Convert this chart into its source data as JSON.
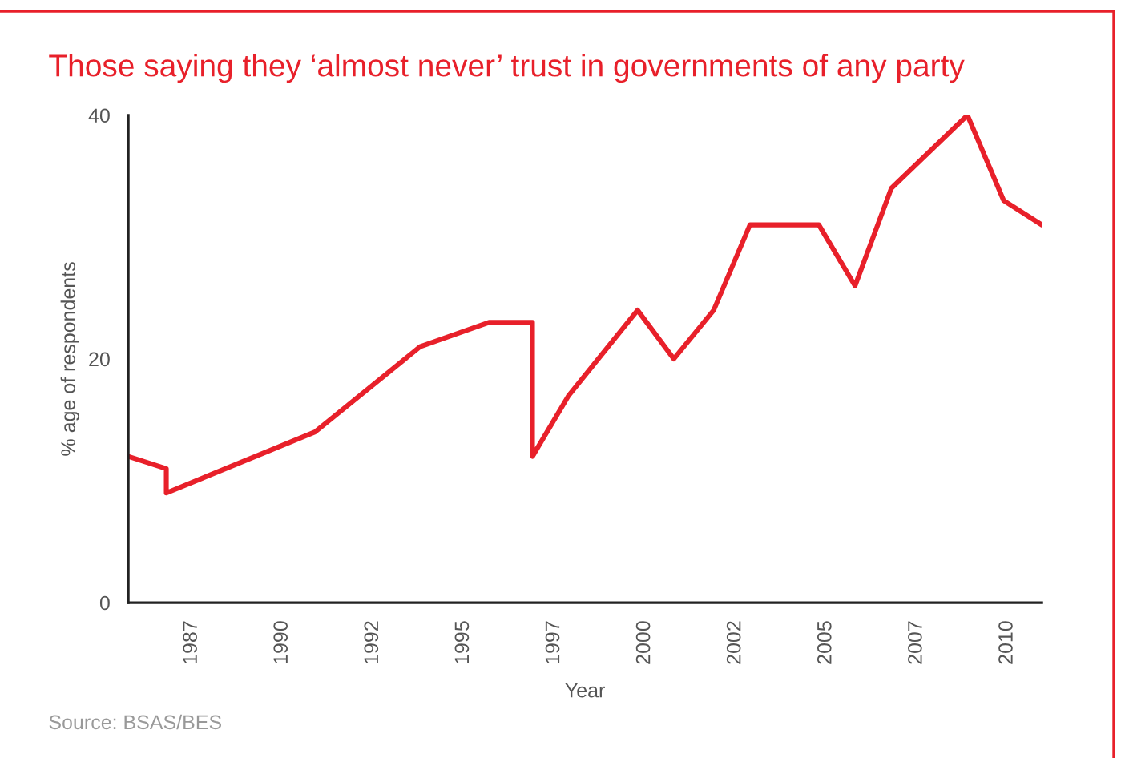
{
  "chart_data": {
    "type": "line",
    "title": "Those saying they ‘almost never’ trust in governments of any party",
    "xlabel": "Year",
    "ylabel": "% age of respondents",
    "x": [
      1985.75,
      1986.8,
      1986.8,
      1990.9,
      1993.8,
      1995.7,
      1996.9,
      1996.9,
      1997.9,
      1999.8,
      2000.8,
      2001.9,
      2002.9,
      2004.8,
      2005.8,
      2006.8,
      2008.9,
      2009.9,
      2010.95
    ],
    "series": [
      {
        "color": "#e8202a",
        "values": [
          12,
          11,
          9,
          14,
          21,
          23,
          23,
          12,
          17,
          24,
          20,
          24,
          31,
          31,
          26,
          34,
          40,
          33,
          31
        ]
      }
    ],
    "xlim": [
      1985.75,
      2010.95
    ],
    "ylim": [
      0,
      40
    ],
    "xticks": [
      {
        "value": 1987.5,
        "label": "1987"
      },
      1990,
      {
        "value": 1992.5,
        "label": "1992"
      },
      1995,
      {
        "value": 1997.5,
        "label": "1997"
      },
      2000,
      {
        "value": 2002.5,
        "label": "2002"
      },
      2005,
      {
        "value": 2007.5,
        "label": "2007"
      },
      2010
    ],
    "yticks": [
      0,
      20,
      40
    ],
    "grid": false,
    "marker": "none",
    "line_style": "solid",
    "annotations": [
      "Source: BSAS/BES"
    ]
  }
}
